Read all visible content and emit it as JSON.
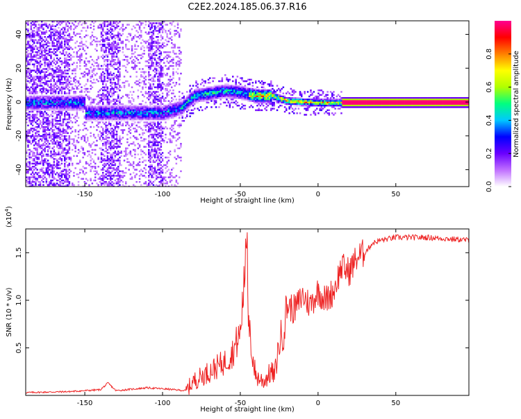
{
  "title": "C2E2.2024.185.06.37.R16",
  "chart_data": [
    {
      "type": "heatmap",
      "xlabel": "Height of straight line (km)",
      "ylabel": "Frequency (Hz)",
      "xlim": [
        -188,
        97
      ],
      "ylim": [
        -50,
        48
      ],
      "xticks": [
        -150,
        -100,
        -50,
        0,
        50
      ],
      "yticks": [
        -40,
        -20,
        0,
        20,
        40
      ],
      "colorbar": {
        "label": "Normalized spectral amplitude",
        "range": [
          0,
          1
        ],
        "ticks": [
          0.0,
          0.2,
          0.4,
          0.6,
          0.8
        ],
        "tick_labels": [
          "0.0",
          "0.2",
          "0.4",
          "0.6",
          "0.8"
        ],
        "colors": [
          "#ffffff",
          "#c070ff",
          "#6a00ff",
          "#0000ff",
          "#00c8ff",
          "#00ff80",
          "#b0ff00",
          "#ffff00",
          "#ff8000",
          "#ff0000",
          "#ff0090"
        ]
      },
      "ridge": [
        {
          "x": -150,
          "f": -6
        },
        {
          "x": -100,
          "f": -6
        },
        {
          "x": -88,
          "f": -3
        },
        {
          "x": -80,
          "f": 4
        },
        {
          "x": -60,
          "f": 7
        },
        {
          "x": -50,
          "f": 6
        },
        {
          "x": -40,
          "f": 4
        },
        {
          "x": -30,
          "f": 4
        },
        {
          "x": -20,
          "f": 1
        },
        {
          "x": 0,
          "f": 0
        },
        {
          "x": 15,
          "f": 0
        },
        {
          "x": 97,
          "f": 0
        }
      ]
    },
    {
      "type": "line",
      "xlabel": "Height of straight line (km)",
      "ylabel": "SNR (10 * v/v)",
      "scale_label": "(x10",
      "scale_exp": "4",
      "scale_close": ")",
      "xlim": [
        -188,
        97
      ],
      "ylim": [
        0,
        1.75
      ],
      "xticks": [
        -150,
        -100,
        -50,
        0,
        50
      ],
      "yticks": [
        0.5,
        1.0,
        1.5
      ],
      "ytick_labels": [
        "0.5",
        "1.0",
        "1.5"
      ],
      "color": "#ee2222",
      "x": [
        -188,
        -160,
        -140,
        -135,
        -130,
        -110,
        -100,
        -85,
        -80,
        -70,
        -60,
        -55,
        -50,
        -47,
        -45,
        -42,
        -40,
        -35,
        -30,
        -28,
        -25,
        -22,
        -20,
        -15,
        -10,
        -5,
        0,
        5,
        10,
        15,
        20,
        25,
        30,
        35,
        40,
        50,
        60,
        70,
        80,
        90,
        97
      ],
      "y": [
        0.03,
        0.04,
        0.06,
        0.13,
        0.05,
        0.08,
        0.07,
        0.05,
        0.15,
        0.25,
        0.35,
        0.45,
        0.65,
        1.3,
        0.8,
        0.4,
        0.2,
        0.15,
        0.25,
        0.2,
        0.55,
        0.7,
        0.95,
        0.9,
        1.05,
        0.95,
        1.1,
        1.0,
        1.1,
        1.35,
        1.3,
        1.45,
        1.5,
        1.6,
        1.63,
        1.66,
        1.66,
        1.66,
        1.65,
        1.64,
        1.63
      ]
    }
  ]
}
